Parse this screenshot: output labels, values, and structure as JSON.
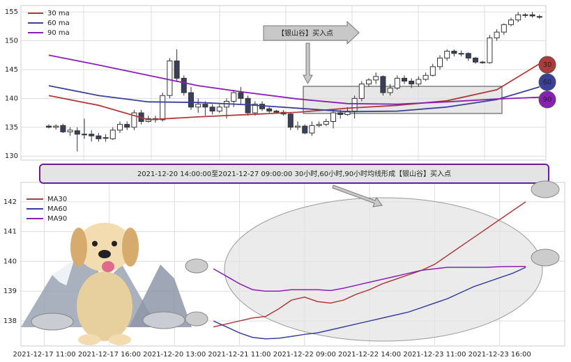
{
  "chart_data": [
    {
      "type": "candlestick",
      "open": [
        135.2,
        135,
        135.3,
        134.2,
        134.4,
        133.8,
        133.8,
        133.5,
        133.2,
        133,
        134.5,
        135.5,
        135,
        137.5,
        136,
        136.5,
        136.3,
        140.5,
        146.5,
        143.5,
        141,
        138.5,
        139,
        138.5,
        137.8,
        138.5,
        139.5,
        141,
        140,
        137.5,
        139,
        138.2,
        137.8,
        137.6,
        137.3,
        135,
        135.2,
        134,
        135.3,
        135.5,
        136,
        137.5,
        137.2,
        137.8,
        140,
        142.5,
        143.2,
        143.8,
        141,
        141.8,
        143.5,
        143,
        142.5,
        143.3,
        144,
        145.5,
        147,
        148.2,
        147.8,
        147.8,
        147,
        146.3,
        146.2,
        150.5,
        151.5,
        152.8,
        153.6,
        154.5,
        154.5,
        154.2
      ],
      "high": [
        135.5,
        135.5,
        135.6,
        135,
        135,
        136.5,
        134.5,
        134,
        133.8,
        135,
        136,
        136,
        138,
        138,
        137,
        137,
        141,
        147,
        148.5,
        144,
        142,
        140,
        139.5,
        139,
        139,
        140,
        141.5,
        142,
        140.5,
        139.5,
        139.5,
        138.5,
        138,
        138,
        137.5,
        136,
        135.5,
        136,
        136,
        136.5,
        138,
        138,
        138.5,
        140.5,
        143,
        143.5,
        144.5,
        144,
        142.5,
        144,
        144,
        143.5,
        143.8,
        144.5,
        146,
        147.5,
        148.5,
        148.5,
        148.3,
        148,
        147.2,
        146.5,
        151,
        152,
        153,
        154,
        155,
        154.8,
        155,
        154.5
      ],
      "low": [
        134.8,
        134.6,
        134,
        133.5,
        130.8,
        133,
        132.5,
        132.5,
        132.5,
        132.8,
        134,
        134.5,
        134.5,
        135.5,
        135.8,
        135.8,
        136,
        140,
        143,
        140.5,
        138,
        137.5,
        137,
        137.2,
        137.5,
        136.5,
        138.5,
        139,
        137,
        137,
        137.8,
        137.5,
        137.4,
        137,
        134.5,
        134.5,
        133.8,
        133.5,
        135,
        135.2,
        134.8,
        136.5,
        137,
        136.5,
        139.5,
        142,
        142.5,
        140.5,
        140.5,
        141.5,
        142.5,
        141.8,
        142,
        143,
        143.8,
        145,
        146.5,
        147.3,
        147.3,
        146.5,
        146,
        146,
        146,
        150,
        151,
        152.5,
        153.2,
        154,
        154,
        153.8
      ],
      "close": [
        135,
        135.2,
        134.2,
        134.5,
        133.8,
        133.8,
        133.5,
        133,
        133.1,
        134.5,
        135.5,
        135,
        137.5,
        136,
        136.5,
        136.3,
        140.5,
        146.5,
        143.5,
        141,
        138.5,
        139,
        138.5,
        137.8,
        138.5,
        139.5,
        141,
        140,
        137.5,
        139,
        138.2,
        137.8,
        137.6,
        137.3,
        135,
        135.2,
        134,
        135.3,
        135.5,
        136,
        137.5,
        137.2,
        137.8,
        140,
        142.5,
        143.2,
        143.8,
        141,
        141.8,
        143.5,
        143,
        142.5,
        143.3,
        144,
        145.5,
        147,
        148.2,
        147.8,
        147.8,
        147,
        146.3,
        146.2,
        150.5,
        151.5,
        152.8,
        153.6,
        154.5,
        154.5,
        154.3,
        154.1
      ],
      "ylim": [
        129.3,
        156.1
      ],
      "yticks": [
        130,
        135,
        140,
        145,
        150,
        155
      ],
      "grid": true,
      "legend": "upper left",
      "series": [
        {
          "name": "30 ma",
          "color": "#b03a3a",
          "x": [
            0,
            7,
            14,
            21,
            28,
            35,
            42,
            49,
            56,
            63,
            69
          ],
          "values": [
            140.5,
            138.8,
            136.3,
            136.8,
            137.2,
            137.6,
            138.3,
            138.8,
            139.6,
            141.5,
            146
          ]
        },
        {
          "name": "60 ma",
          "color": "#3a3f9a",
          "x": [
            0,
            7,
            14,
            21,
            28,
            35,
            42,
            49,
            56,
            63,
            69
          ],
          "values": [
            142.2,
            140.5,
            139.4,
            139.3,
            138.9,
            138.3,
            137.7,
            137.8,
            138.5,
            139.8,
            142
          ]
        },
        {
          "name": "90 ma",
          "color": "#8a1fb8",
          "x": [
            0,
            7,
            14,
            21,
            28,
            35,
            42,
            49,
            56,
            63,
            69
          ],
          "values": [
            147.5,
            145.8,
            144,
            142.2,
            141,
            139.9,
            139.1,
            139,
            139.4,
            139.9,
            140.2
          ]
        }
      ],
      "badges": [
        "30",
        "60",
        "90"
      ],
      "annotation": "【银山谷】买入点"
    },
    {
      "type": "line",
      "title": "2021-12-20 14:00:00至2021-12-27 09:00:00 30小时,60小时,90小时均线形成【银山谷】买入点",
      "xlim": [
        -1.8,
        40
      ],
      "ylim": [
        137.16,
        142.65
      ],
      "xticks": [
        {
          "value": 0,
          "label": "2021-12-17 11:00"
        },
        {
          "value": 5,
          "label": "2021-12-17 16:00"
        },
        {
          "value": 10,
          "label": "2021-12-20 13:00"
        },
        {
          "value": 15,
          "label": "2021-12-21 11:00"
        },
        {
          "value": 20,
          "label": "2021-12-22 09:00"
        },
        {
          "value": 25,
          "label": "2021-12-22 14:00"
        },
        {
          "value": 30,
          "label": "2021-12-23 11:00"
        },
        {
          "value": 35,
          "label": "2021-12-23 16:00"
        }
      ],
      "yticks": [
        138,
        139,
        140,
        141,
        142
      ],
      "grid": true,
      "legend": "upper left",
      "series": [
        {
          "name": "MA30",
          "color": "#b03a3a",
          "x": [
            13,
            14,
            15,
            16,
            17,
            18,
            19,
            20,
            21,
            22,
            23,
            24,
            25,
            26,
            27,
            28,
            29,
            30,
            31,
            32,
            33,
            34,
            35,
            36,
            37
          ],
          "values": [
            137.8,
            137.9,
            138.0,
            138.1,
            138.15,
            138.4,
            138.7,
            138.8,
            138.65,
            138.6,
            138.7,
            138.9,
            139.05,
            139.25,
            139.4,
            139.55,
            139.7,
            139.9,
            140.2,
            140.5,
            140.8,
            141.1,
            141.4,
            141.7,
            142.0
          ]
        },
        {
          "name": "MA60",
          "color": "#3a3f9a",
          "x": [
            13,
            14,
            15,
            16,
            17,
            18,
            19,
            20,
            21,
            22,
            23,
            24,
            25,
            26,
            27,
            28,
            29,
            30,
            31,
            32,
            33,
            34,
            35,
            36,
            37
          ],
          "values": [
            138.0,
            137.8,
            137.6,
            137.45,
            137.4,
            137.42,
            137.48,
            137.55,
            137.6,
            137.7,
            137.8,
            137.9,
            138.0,
            138.1,
            138.2,
            138.3,
            138.45,
            138.6,
            138.75,
            138.95,
            139.15,
            139.3,
            139.45,
            139.6,
            139.8
          ]
        },
        {
          "name": "MA90",
          "color": "#8a1fb8",
          "x": [
            13,
            14,
            15,
            16,
            17,
            18,
            19,
            20,
            21,
            22,
            23,
            24,
            25,
            26,
            27,
            28,
            29,
            30,
            31,
            32,
            33,
            34,
            35,
            36,
            37
          ],
          "values": [
            139.75,
            139.5,
            139.25,
            139.05,
            139.0,
            139.0,
            139.05,
            139.05,
            139.05,
            139.02,
            139.1,
            139.2,
            139.3,
            139.4,
            139.5,
            139.6,
            139.7,
            139.75,
            139.8,
            139.8,
            139.8,
            139.8,
            139.82,
            139.83,
            139.83
          ]
        }
      ]
    }
  ]
}
